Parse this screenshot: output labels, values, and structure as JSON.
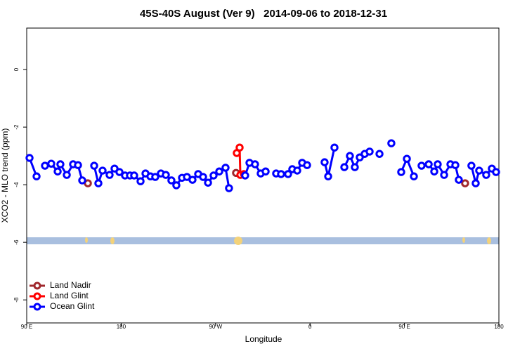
{
  "chart_data": {
    "type": "line",
    "title": "45S-40S August (Ver 9)   2014-09-06 to 2018-12-31",
    "xlabel": "Longitude",
    "ylabel": "XCO2 - MLO trend (ppm)",
    "xlim": [
      90,
      540
    ],
    "ylim": [
      -8.8,
      1.44
    ],
    "xticks": [
      {
        "value": 90,
        "label": "90 E"
      },
      180,
      {
        "value": 270,
        "label": "90 W"
      },
      {
        "value": 360,
        "label": "0"
      },
      {
        "value": 450,
        "label": "90 E"
      },
      {
        "value": 540,
        "label": "180"
      }
    ],
    "yticks": [
      0,
      -2,
      -4,
      -6,
      -8
    ],
    "legend": "bottom left",
    "series": [
      {
        "name": "Land Nadir",
        "color": "#a0282d",
        "x": [
          148.3,
          null,
          289.5,
          null,
          507.8
        ],
        "values": [
          -3.95,
          null,
          -3.59,
          null,
          -3.95
        ]
      },
      {
        "name": "Land Glint",
        "color": "#ff0000",
        "x": [
          290.2,
          292.9,
          293.6,
          296.9
        ],
        "values": [
          -2.9,
          -2.71,
          -3.66,
          -3.63
        ]
      },
      {
        "name": "Ocean Glint",
        "color": "#0000ff",
        "x": [
          92.7,
          99.4,
          null,
          107.4,
          113.4,
          119.5,
          122.1,
          128.2,
          134.2,
          138.9,
          142.9,
          null,
          154.3,
          158.3,
          162.3,
          169.0,
          173.7,
          178.4,
          183.7,
          188.4,
          192.4,
          198.5,
          203.2,
          207.9,
          212.5,
          217.9,
          222.6,
          227.9,
          232.6,
          238.0,
          242.7,
          248.0,
          253.4,
          258.1,
          262.8,
          268.1,
          273.5,
          279.5,
          282.8,
          null,
          298.2,
          302.3,
          307.6,
          313.0,
          317.7,
          null,
          327.7,
          332.4,
          339.1,
          343.1,
          347.8,
          352.5,
          357.2,
          null,
          373.9,
          377.3,
          383.3,
          null,
          392.7,
          398.0,
          402.7,
          407.4,
          412.1,
          416.8,
          null,
          426.2,
          null,
          437.5,
          null,
          446.9,
          452.3,
          459.0,
          null,
          466.3,
          473.1,
          478.4,
          481.7,
          487.8,
          493.8,
          498.5,
          501.8,
          null,
          513.8,
          517.9,
          521.2,
          527.9,
          533.3,
          537.3
        ],
        "values": [
          -3.07,
          -3.71,
          null,
          -3.34,
          -3.27,
          -3.54,
          -3.29,
          -3.66,
          -3.29,
          -3.32,
          -3.85,
          null,
          -3.34,
          -3.95,
          -3.51,
          -3.66,
          -3.44,
          -3.56,
          -3.68,
          -3.68,
          -3.68,
          -3.88,
          -3.61,
          -3.71,
          -3.73,
          -3.61,
          -3.66,
          -3.85,
          -4.02,
          -3.76,
          -3.73,
          -3.83,
          -3.63,
          -3.73,
          -3.93,
          -3.68,
          -3.54,
          -3.41,
          -4.12,
          null,
          -3.68,
          -3.24,
          -3.29,
          -3.61,
          -3.54,
          null,
          -3.61,
          -3.63,
          -3.63,
          -3.46,
          -3.51,
          -3.24,
          -3.32,
          null,
          -3.22,
          -3.71,
          -2.71,
          null,
          -3.39,
          -3.0,
          -3.39,
          -3.05,
          -2.93,
          -2.85,
          null,
          -2.93,
          null,
          -2.56,
          null,
          -3.56,
          -3.1,
          -3.71,
          null,
          -3.34,
          -3.29,
          -3.54,
          -3.29,
          -3.66,
          -3.29,
          -3.32,
          -3.83,
          null,
          -3.34,
          -3.95,
          -3.51,
          -3.66,
          -3.44,
          -3.56
        ]
      }
    ]
  }
}
